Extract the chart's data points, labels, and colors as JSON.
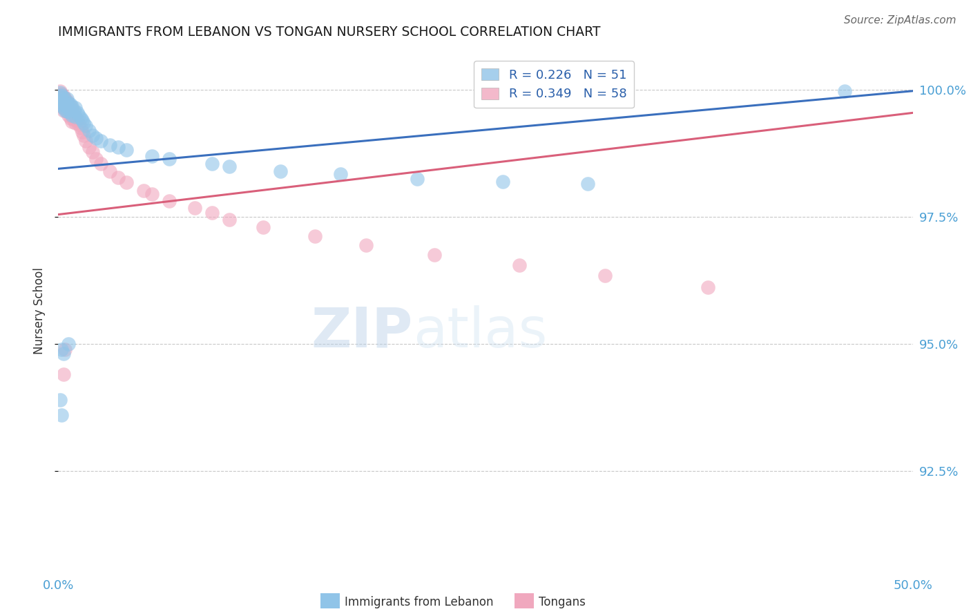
{
  "title": "IMMIGRANTS FROM LEBANON VS TONGAN NURSERY SCHOOL CORRELATION CHART",
  "source": "Source: ZipAtlas.com",
  "ylabel": "Nursery School",
  "xlim": [
    0.0,
    0.5
  ],
  "ylim": [
    0.905,
    1.008
  ],
  "yticks": [
    0.925,
    0.95,
    0.975,
    1.0
  ],
  "ytick_labels": [
    "92.5%",
    "95.0%",
    "97.5%",
    "100.0%"
  ],
  "xticks": [
    0.0,
    0.1,
    0.2,
    0.3,
    0.4,
    0.5
  ],
  "xtick_labels": [
    "0.0%",
    "",
    "",
    "",
    "",
    "50.0%"
  ],
  "legend_blue_label": "Immigrants from Lebanon",
  "legend_pink_label": "Tongans",
  "R_blue": 0.226,
  "N_blue": 51,
  "R_pink": 0.349,
  "N_pink": 58,
  "blue_color": "#90c4e8",
  "pink_color": "#f0a8be",
  "blue_line_color": "#3a6fbd",
  "pink_line_color": "#d95f7a",
  "blue_line_x0": 0.0,
  "blue_line_y0": 0.9845,
  "blue_line_x1": 0.5,
  "blue_line_y1": 0.9998,
  "pink_line_x0": 0.0,
  "pink_line_y0": 0.9755,
  "pink_line_x1": 0.5,
  "pink_line_y1": 0.9955,
  "blue_dots_x": [
    0.001,
    0.001,
    0.001,
    0.002,
    0.002,
    0.002,
    0.003,
    0.003,
    0.003,
    0.004,
    0.004,
    0.005,
    0.005,
    0.005,
    0.006,
    0.006,
    0.007,
    0.007,
    0.008,
    0.008,
    0.009,
    0.01,
    0.01,
    0.011,
    0.012,
    0.013,
    0.014,
    0.015,
    0.016,
    0.018,
    0.02,
    0.022,
    0.025,
    0.03,
    0.035,
    0.04,
    0.055,
    0.065,
    0.09,
    0.1,
    0.13,
    0.165,
    0.21,
    0.26,
    0.31,
    0.006,
    0.002,
    0.003,
    0.001,
    0.002,
    0.46
  ],
  "blue_dots_y": [
    0.9995,
    0.9988,
    0.9975,
    0.999,
    0.998,
    0.997,
    0.9985,
    0.9975,
    0.9965,
    0.9978,
    0.996,
    0.9982,
    0.997,
    0.9958,
    0.9975,
    0.9962,
    0.9972,
    0.9955,
    0.9968,
    0.995,
    0.996,
    0.9965,
    0.9948,
    0.9955,
    0.995,
    0.9945,
    0.994,
    0.9935,
    0.993,
    0.992,
    0.991,
    0.9905,
    0.99,
    0.9892,
    0.9888,
    0.9882,
    0.987,
    0.9865,
    0.9855,
    0.985,
    0.984,
    0.9835,
    0.9825,
    0.982,
    0.9815,
    0.95,
    0.949,
    0.9482,
    0.939,
    0.936,
    0.9998
  ],
  "pink_dots_x": [
    0.001,
    0.001,
    0.001,
    0.002,
    0.002,
    0.002,
    0.002,
    0.003,
    0.003,
    0.003,
    0.003,
    0.004,
    0.004,
    0.004,
    0.005,
    0.005,
    0.005,
    0.006,
    0.006,
    0.006,
    0.007,
    0.007,
    0.007,
    0.008,
    0.008,
    0.008,
    0.009,
    0.009,
    0.01,
    0.01,
    0.011,
    0.012,
    0.013,
    0.014,
    0.015,
    0.016,
    0.018,
    0.02,
    0.022,
    0.025,
    0.03,
    0.035,
    0.04,
    0.05,
    0.055,
    0.065,
    0.08,
    0.09,
    0.1,
    0.12,
    0.15,
    0.18,
    0.22,
    0.27,
    0.32,
    0.38,
    0.004,
    0.003
  ],
  "pink_dots_y": [
    0.9998,
    0.999,
    0.9982,
    0.9992,
    0.9985,
    0.9978,
    0.9968,
    0.9988,
    0.998,
    0.9972,
    0.996,
    0.9982,
    0.9972,
    0.9962,
    0.9978,
    0.9968,
    0.9958,
    0.9972,
    0.9962,
    0.995,
    0.9968,
    0.9958,
    0.9945,
    0.9962,
    0.995,
    0.9938,
    0.9955,
    0.9942,
    0.9948,
    0.9935,
    0.994,
    0.9932,
    0.9925,
    0.9918,
    0.991,
    0.99,
    0.9888,
    0.9878,
    0.9865,
    0.9855,
    0.984,
    0.9828,
    0.9818,
    0.9802,
    0.9795,
    0.9782,
    0.9768,
    0.9758,
    0.9745,
    0.973,
    0.9712,
    0.9695,
    0.9675,
    0.9655,
    0.9635,
    0.9612,
    0.949,
    0.944
  ]
}
